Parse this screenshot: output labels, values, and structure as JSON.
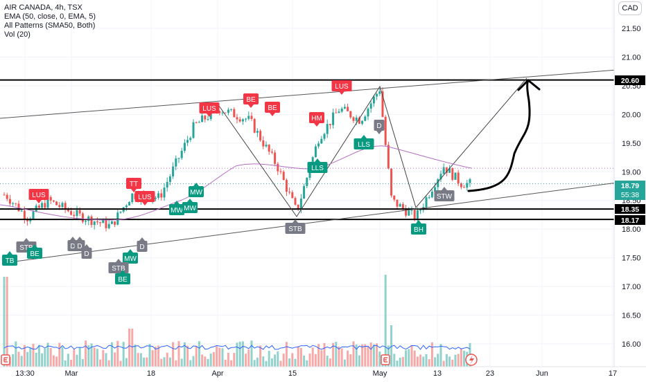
{
  "header": {
    "symbol_line": "AIR CANADA, 4h, TSX",
    "indicators": [
      "EMA (50, close, 0, EMA, 5)",
      "All Patterns (SMA50, Both)",
      "Vol (20)"
    ],
    "currency_button": "CAD"
  },
  "axes": {
    "price_ticks": [
      "21.50",
      "21.00",
      "20.50",
      "20.00",
      "19.50",
      "19.00",
      "18.50",
      "18.00",
      "17.50",
      "17.00",
      "16.50",
      "16.00"
    ],
    "time_ticks": [
      "13:30",
      "Mar",
      "18",
      "Apr",
      "15",
      "May",
      "13",
      "23",
      "Jun",
      "17"
    ]
  },
  "price_labels": [
    {
      "text": "20.60",
      "style": "black"
    },
    {
      "text": "18.79",
      "sub": "55:38",
      "style": "green"
    },
    {
      "text": "18.35",
      "style": "black"
    },
    {
      "text": "18.17",
      "style": "black"
    }
  ],
  "patterns": [
    {
      "text": "LUS",
      "kind": "bear"
    },
    {
      "text": "TT",
      "kind": "bear"
    },
    {
      "text": "LUS",
      "kind": "bear"
    },
    {
      "text": "LUS",
      "kind": "bear"
    },
    {
      "text": "BE",
      "kind": "bear"
    },
    {
      "text": "BE",
      "kind": "bear"
    },
    {
      "text": "HM",
      "kind": "bear"
    },
    {
      "text": "LUS",
      "kind": "bear"
    },
    {
      "text": "D",
      "kind": "neutral"
    },
    {
      "text": "LLS",
      "kind": "bull"
    },
    {
      "text": "LLS",
      "kind": "bull"
    },
    {
      "text": "MW",
      "kind": "bull"
    },
    {
      "text": "MW",
      "kind": "bull"
    },
    {
      "text": "MW",
      "kind": "bull"
    },
    {
      "text": "STW",
      "kind": "neutral"
    },
    {
      "text": "STB",
      "kind": "neutral"
    },
    {
      "text": "BH",
      "kind": "bull"
    },
    {
      "text": "TB",
      "kind": "bull"
    },
    {
      "text": "STB",
      "kind": "neutral"
    },
    {
      "text": "BE",
      "kind": "bull"
    },
    {
      "text": "D",
      "kind": "neutral"
    },
    {
      "text": "D",
      "kind": "neutral"
    },
    {
      "text": "D",
      "kind": "neutral"
    },
    {
      "text": "D",
      "kind": "neutral"
    },
    {
      "text": "MW",
      "kind": "bull"
    },
    {
      "text": "STB",
      "kind": "neutral"
    },
    {
      "text": "BE",
      "kind": "bull"
    }
  ],
  "colors": {
    "up": "#26a69a",
    "down": "#ef5350",
    "bear_label": "#f23645",
    "bull_label": "#089981",
    "neutral_label": "#787b86",
    "ema": "#b46cc2",
    "volume_ma": "#2962ff"
  }
}
